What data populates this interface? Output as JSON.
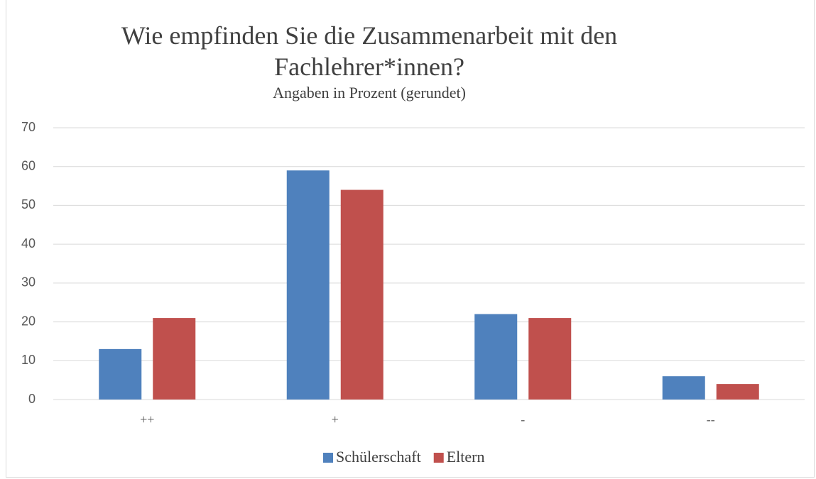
{
  "chart_data": {
    "type": "bar",
    "title": "Wie empfinden Sie die Zusammenarbeit mit den Fachlehrer*innen?",
    "subtitle": "Angaben in Prozent (gerundet)",
    "categories": [
      "++",
      "+",
      "-",
      "--"
    ],
    "series": [
      {
        "name": "Schülerschaft",
        "color": "#4f81bd",
        "values": [
          13,
          59,
          22,
          6
        ]
      },
      {
        "name": "Eltern",
        "color": "#c0504d",
        "values": [
          21,
          54,
          21,
          4
        ]
      }
    ],
    "ylim": [
      0,
      70
    ],
    "yticks": [
      0,
      10,
      20,
      30,
      40,
      50,
      60,
      70
    ],
    "grid": true,
    "legend": "bottom"
  }
}
